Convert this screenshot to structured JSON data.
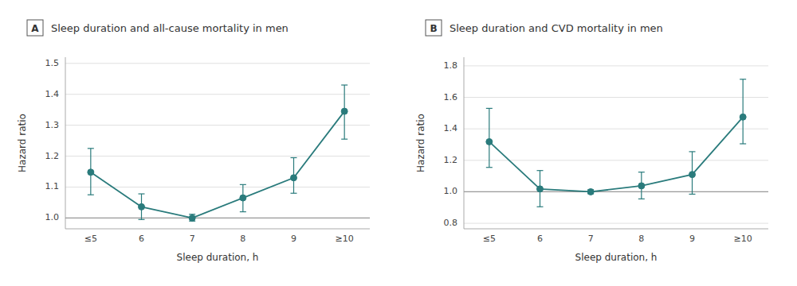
{
  "chart_data": [
    {
      "type": "line",
      "title": "Sleep duration and all-cause mortality in men",
      "annotations": [
        "A"
      ],
      "xlabel": "Sleep duration, h",
      "ylabel": "Hazard ratio",
      "categories": [
        "≤5",
        "6",
        "7",
        "8",
        "9",
        "≥10"
      ],
      "series": [
        {
          "color": "#2a7b7c",
          "marker": "circle",
          "values": [
            1.148,
            1.036,
            1.0,
            1.065,
            1.13,
            1.345
          ],
          "error_low": [
            1.075,
            0.995,
            0.99,
            1.02,
            1.08,
            1.255
          ],
          "error_high": [
            1.225,
            1.078,
            1.012,
            1.108,
            1.195,
            1.43
          ]
        }
      ],
      "reference_line": 1.0,
      "ylim": [
        0.965,
        1.52
      ],
      "yticks": [
        {
          "value": 1.0,
          "label": "1.0"
        },
        1.1,
        1.2,
        1.3,
        1.4,
        1.5
      ],
      "grid": true
    },
    {
      "type": "line",
      "title": "Sleep duration and CVD mortality in men",
      "annotations": [
        "B"
      ],
      "xlabel": "Sleep duration, h",
      "ylabel": "Hazard ratio",
      "categories": [
        "≤5",
        "6",
        "7",
        "8",
        "9",
        "≥10"
      ],
      "series": [
        {
          "color": "#2a7b7c",
          "marker": "circle",
          "values": [
            1.318,
            1.018,
            1.0,
            1.038,
            1.11,
            1.475
          ],
          "error_low": [
            1.155,
            0.905,
            0.988,
            0.955,
            0.985,
            1.305
          ],
          "error_high": [
            1.53,
            1.135,
            1.013,
            1.125,
            1.255,
            1.715
          ]
        }
      ],
      "reference_line": 1.0,
      "ylim": [
        0.765,
        1.855
      ],
      "yticks": [
        0.8,
        {
          "value": 1.0,
          "label": "1.0"
        },
        1.2,
        1.4,
        1.6,
        1.8
      ],
      "grid": true
    }
  ]
}
